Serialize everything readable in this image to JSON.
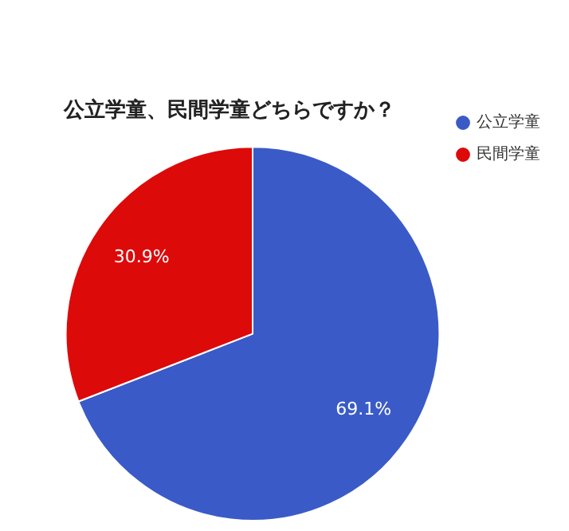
{
  "chart_data": {
    "type": "pie",
    "title": "公立学童、民間学童どちらですか？",
    "categories": [
      "公立学童",
      "民間学童"
    ],
    "values": [
      69.1,
      30.9
    ],
    "colors": [
      "#3a5bc7",
      "#dd0a0a"
    ],
    "value_labels": [
      "69.1%",
      "30.9%"
    ],
    "legend": "top right"
  }
}
